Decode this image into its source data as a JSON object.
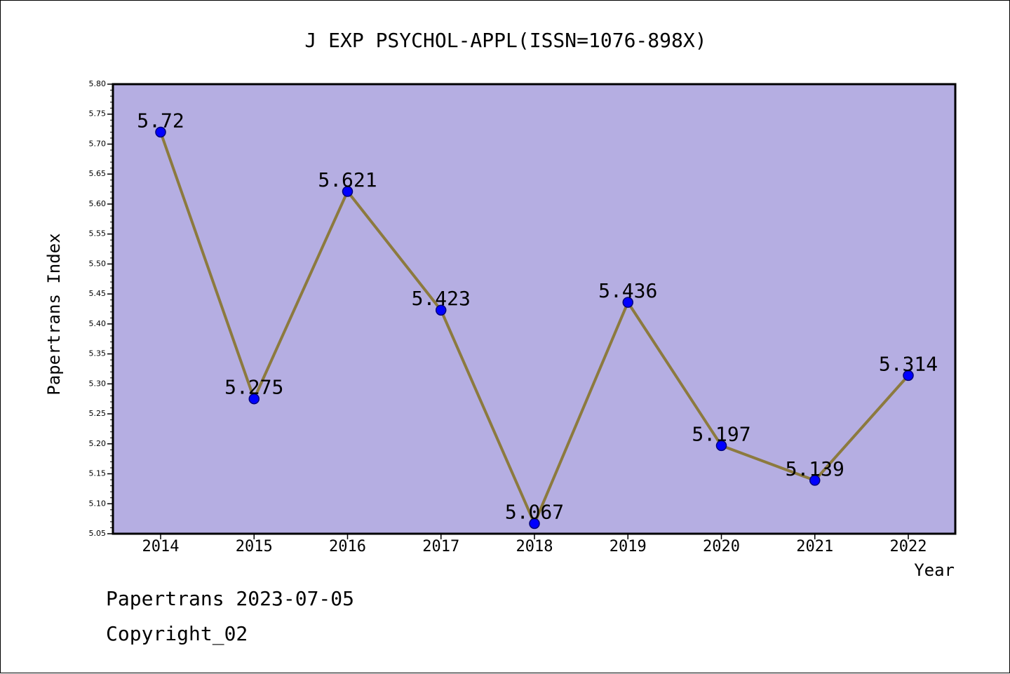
{
  "chart_data": {
    "type": "line",
    "title": "J EXP PSYCHOL-APPL(ISSN=1076-898X)",
    "xlabel": "Year",
    "ylabel": "Papertrans Index",
    "x": [
      "2014",
      "2015",
      "2016",
      "2017",
      "2018",
      "2019",
      "2020",
      "2021",
      "2022"
    ],
    "series": [
      {
        "values": [
          5.72,
          5.275,
          5.621,
          5.423,
          5.067,
          5.436,
          5.197,
          5.139,
          5.314
        ],
        "data_labels": [
          "5.72",
          "5.275",
          "5.621",
          "5.423",
          "5.067",
          "5.436",
          "5.197",
          "5.139",
          "5.314"
        ]
      }
    ],
    "ylim": [
      5.05,
      5.8
    ],
    "yticks": [
      "5.05",
      "5.10",
      "5.15",
      "5.20",
      "5.25",
      "5.30",
      "5.35",
      "5.40",
      "5.45",
      "5.50",
      "5.55",
      "5.60",
      "5.65",
      "5.70",
      "5.75",
      "5.80"
    ],
    "grid": false,
    "legend": "none",
    "colors": {
      "plot_background": "#b5aee2",
      "line": "#8c7a3e",
      "marker_fill": "#0000ff",
      "marker_edge": "#00007a",
      "axes": "#000000"
    }
  },
  "footer": {
    "line1": "Papertrans 2023-07-05",
    "line2": "Copyright_02"
  }
}
